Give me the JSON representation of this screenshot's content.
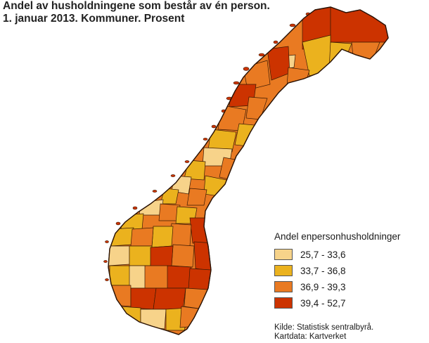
{
  "title": {
    "line1": "Andel av husholdningene som består av én person.",
    "line2": "1. januar 2013. Kommuner. Prosent"
  },
  "legend": {
    "title": "Andel enpersonhusholdninger",
    "items": [
      {
        "label": "25,7 - 33,6",
        "color": "#f7d38a"
      },
      {
        "label": "33,7 - 36,8",
        "color": "#ebb21e"
      },
      {
        "label": "36,9 - 39,3",
        "color": "#e97a22"
      },
      {
        "label": "39,4 - 52,7",
        "color": "#cc3300"
      }
    ]
  },
  "source": {
    "line1": "Kilde: Statistisk sentralbyrå.",
    "line2": "Kartdata: Kartverket"
  },
  "map": {
    "country": "Norway",
    "unit": "Kommuner",
    "border_color": "#3a1a05"
  }
}
